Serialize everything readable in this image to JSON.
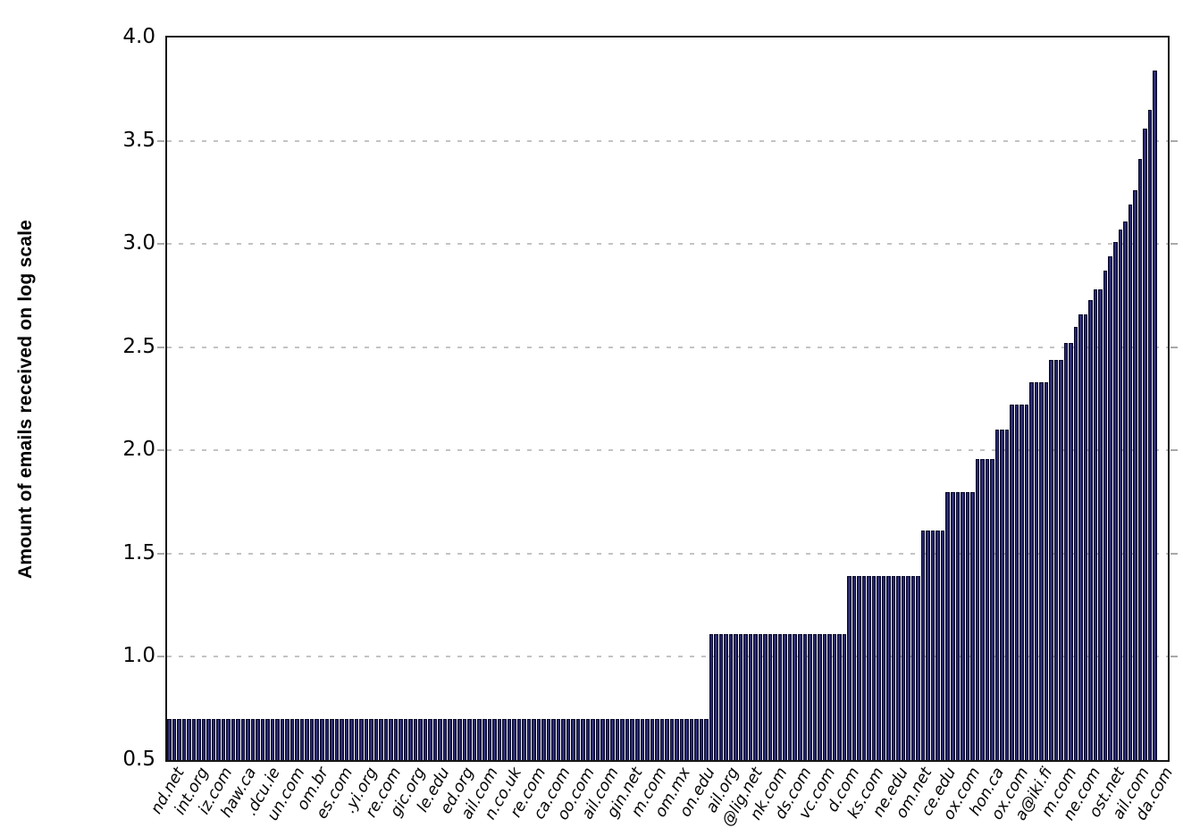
{
  "chart_data": {
    "type": "bar",
    "title": "",
    "xlabel": "",
    "ylabel": "Amount of emails received on log scale",
    "ylim": [
      0.5,
      4.0
    ],
    "yticks": [
      {
        "label": "4.0",
        "value": 4.0
      },
      {
        "label": "3.5",
        "value": 3.5
      },
      {
        "label": "3.0",
        "value": 3.0
      },
      {
        "label": "2.5",
        "value": 2.5
      },
      {
        "label": "2.0",
        "value": 2.0
      },
      {
        "label": "1.5",
        "value": 1.5
      },
      {
        "label": "1.0",
        "value": 1.0
      },
      {
        "label": "0.5",
        "value": 0.5
      }
    ],
    "gridline_values": [
      3.5,
      3.0,
      2.5,
      2.0,
      1.5,
      1.0
    ],
    "grid_style": "dashed-horizontal",
    "legend": "none",
    "bar_fill_color": "#24246b",
    "bar_border_color": "#07072b",
    "bar_value_segments_run_length": [
      [
        0.7,
        110
      ],
      [
        1.11,
        28
      ],
      [
        1.39,
        15
      ],
      [
        1.61,
        5
      ],
      [
        1.8,
        6
      ],
      [
        1.96,
        4
      ],
      [
        2.1,
        3
      ],
      [
        2.22,
        4
      ],
      [
        2.33,
        4
      ],
      [
        2.44,
        3
      ],
      [
        2.52,
        2
      ],
      [
        2.6,
        1
      ],
      [
        2.66,
        2
      ],
      [
        2.73,
        1
      ],
      [
        2.78,
        2
      ],
      [
        2.87,
        1
      ],
      [
        2.94,
        1
      ],
      [
        3.01,
        1
      ],
      [
        3.07,
        1
      ],
      [
        3.11,
        1
      ],
      [
        3.19,
        1
      ],
      [
        3.26,
        1
      ],
      [
        3.41,
        1
      ],
      [
        3.56,
        1
      ],
      [
        3.65,
        1
      ],
      [
        3.84,
        1
      ]
    ],
    "x_tick_rotation_deg": 60,
    "x_labels_visible_fragments": [
      "nd.net",
      "int.org",
      "iz.com",
      "haw.ca",
      ".dcu.ie",
      "un.com",
      "om.br",
      "es.com",
      ".yi.org",
      "re.com",
      "gic.org",
      "le.edu",
      "ed.org",
      "ail.com",
      "n.co.uk",
      "re.com",
      "ca.com",
      "oo.com",
      "ail.com",
      "gin.net",
      "m.com",
      "om.mx",
      "on.edu",
      "ail.org",
      "@lig.net",
      "nk.com",
      "ds.com",
      "vc.com",
      "d.com",
      "ks.com",
      "ne.edu",
      "om.net",
      "ce.edu",
      "ox.com",
      "hon.ca",
      "ox.com",
      "a@iki.fi",
      "m.com",
      "ne.com",
      "ost.net",
      "ail.com",
      "da.com"
    ]
  }
}
